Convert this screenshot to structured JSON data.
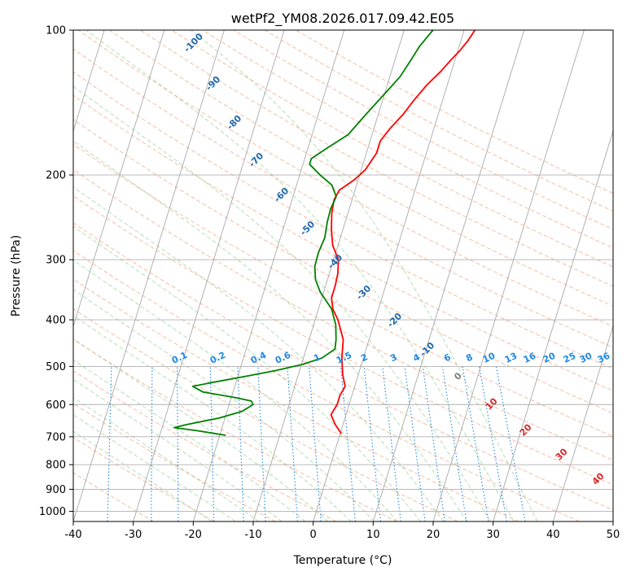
{
  "chart_data": {
    "type": "line",
    "chart_kind": "skew-T log-P diagram",
    "title": "wetPf2_YM08.2026.017.09.42.E05",
    "xlabel": "Temperature (°C)",
    "ylabel": "Pressure (hPa)",
    "xlim": [
      -40,
      50
    ],
    "ylim": [
      1050,
      100
    ],
    "x_ticks": [
      -40,
      -30,
      -20,
      -10,
      0,
      10,
      20,
      30,
      40,
      50
    ],
    "y_ticks": [
      100,
      200,
      300,
      400,
      500,
      600,
      700,
      800,
      900,
      1000
    ],
    "grid": true,
    "colors": {
      "temperature": "#ff0000",
      "dewpoint": "#008000",
      "isotherm": "#a9a9a9",
      "dry_adiabat": "#f4a582",
      "moist_adiabat": "#a6d9a6",
      "mixing_ratio": "#1e88e5",
      "isotherm_label": "#2166ac",
      "mixing_label": "#1e88e5",
      "zero_label": "#7f7f7f",
      "warm_label": "#d62728",
      "major_dry_adiabat": "#e0c7a8"
    },
    "series": [
      {
        "name": "Temperature",
        "points": [
          [
            690,
            0.2
          ],
          [
            660,
            -1.3
          ],
          [
            630,
            -2.5
          ],
          [
            600,
            -2.0
          ],
          [
            575,
            -2.0
          ],
          [
            550,
            -1.6
          ],
          [
            520,
            -2.6
          ],
          [
            480,
            -3.6
          ],
          [
            440,
            -4.3
          ],
          [
            400,
            -6.2
          ],
          [
            380,
            -7.6
          ],
          [
            360,
            -8.4
          ],
          [
            340,
            -8.4
          ],
          [
            320,
            -8.6
          ],
          [
            300,
            -9.2
          ],
          [
            280,
            -10.9
          ],
          [
            260,
            -11.9
          ],
          [
            240,
            -12.7
          ],
          [
            225,
            -13.0
          ],
          [
            215,
            -12.6
          ],
          [
            205,
            -10.7
          ],
          [
            195,
            -9.3
          ],
          [
            180,
            -8.3
          ],
          [
            170,
            -8.3
          ],
          [
            160,
            -7.3
          ],
          [
            150,
            -5.9
          ],
          [
            140,
            -4.8
          ],
          [
            130,
            -3.4
          ],
          [
            122,
            -1.8
          ],
          [
            115,
            -0.6
          ],
          [
            110,
            0.4
          ],
          [
            105,
            1.2
          ],
          [
            100,
            1.8
          ]
        ]
      },
      {
        "name": "Dewpoint",
        "points": [
          [
            695,
            -19.0
          ],
          [
            680,
            -24.0
          ],
          [
            670,
            -28.0
          ],
          [
            660,
            -26.0
          ],
          [
            640,
            -21.0
          ],
          [
            620,
            -17.5
          ],
          [
            600,
            -16.0
          ],
          [
            590,
            -16.5
          ],
          [
            580,
            -19.5
          ],
          [
            565,
            -25.0
          ],
          [
            550,
            -27.0
          ],
          [
            540,
            -24.0
          ],
          [
            525,
            -19.0
          ],
          [
            510,
            -14.0
          ],
          [
            495,
            -9.8
          ],
          [
            480,
            -6.9
          ],
          [
            460,
            -5.2
          ],
          [
            440,
            -5.5
          ],
          [
            410,
            -6.3
          ],
          [
            380,
            -7.8
          ],
          [
            350,
            -10.6
          ],
          [
            330,
            -12.0
          ],
          [
            310,
            -12.8
          ],
          [
            290,
            -12.9
          ],
          [
            270,
            -12.6
          ],
          [
            250,
            -13.0
          ],
          [
            235,
            -13.1
          ],
          [
            222,
            -12.8
          ],
          [
            210,
            -14.1
          ],
          [
            200,
            -16.6
          ],
          [
            190,
            -18.9
          ],
          [
            185,
            -18.9
          ],
          [
            175,
            -16.6
          ],
          [
            165,
            -14.0
          ],
          [
            150,
            -12.1
          ],
          [
            135,
            -9.9
          ],
          [
            125,
            -8.3
          ],
          [
            115,
            -7.3
          ],
          [
            108,
            -6.6
          ],
          [
            100,
            -5.2
          ]
        ]
      }
    ],
    "isotherm_labels": [
      "-100",
      "-90",
      "-80",
      "-70",
      "-60",
      "-50",
      "-40",
      "-30",
      "-20",
      "-10",
      "0",
      "10",
      "20",
      "30",
      "40"
    ],
    "mixing_ratio_labels": [
      "0.1",
      "0.2",
      "0.4",
      "0.6",
      "1",
      "1.5",
      "2",
      "3",
      "4",
      "6",
      "8",
      "10",
      "13",
      "16",
      "20",
      "25",
      "30",
      "36"
    ]
  }
}
